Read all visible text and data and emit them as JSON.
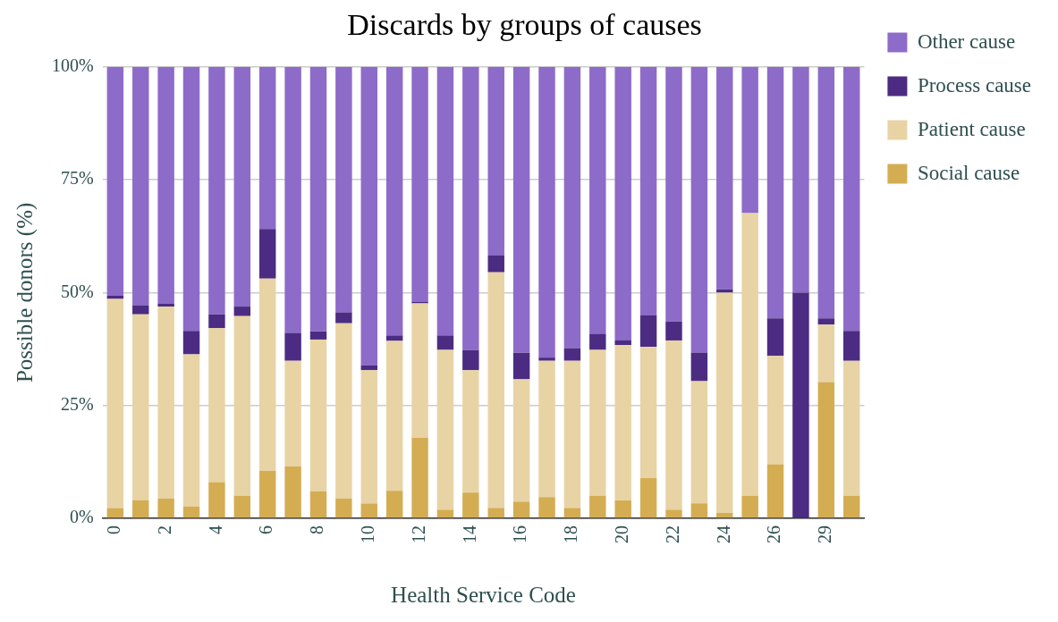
{
  "chart_data": {
    "type": "bar",
    "title": "Discards by groups of causes",
    "xlabel": "Health Service Code",
    "ylabel": "Possible donors (%)",
    "categories": [
      "0",
      null,
      "2",
      null,
      "4",
      null,
      "6",
      null,
      "8",
      null,
      "10",
      null,
      "12",
      null,
      "14",
      null,
      "16",
      null,
      "18",
      null,
      "20",
      null,
      "22",
      null,
      "24",
      null,
      "26",
      null,
      "29",
      null
    ],
    "stacked": true,
    "ylim": [
      0,
      100
    ],
    "yticks": [
      {
        "value": 0,
        "label": "0%"
      },
      {
        "value": 25,
        "label": "25%"
      },
      {
        "value": 50,
        "label": "50%"
      },
      {
        "value": 75,
        "label": "75%"
      },
      {
        "value": 100,
        "label": "100%"
      }
    ],
    "grid": "y",
    "legend": "top right",
    "series": [
      {
        "name": "Social cause",
        "color": "#d4ad53",
        "values": [
          2.3,
          4.0,
          4.4,
          2.6,
          8.0,
          5.0,
          10.5,
          11.5,
          6.0,
          4.4,
          3.3,
          6.1,
          17.8,
          1.9,
          5.7,
          2.3,
          3.7,
          4.7,
          2.3,
          5.0,
          4.0,
          8.9,
          1.9,
          3.3,
          1.2,
          5.0,
          12.0,
          0,
          30.2,
          5.0
        ]
      },
      {
        "name": "Patient cause",
        "color": "#e8d3a5",
        "values": [
          46.3,
          41.2,
          42.5,
          33.7,
          34.1,
          39.8,
          42.6,
          23.4,
          33.6,
          38.8,
          29.5,
          33.2,
          29.8,
          35.4,
          27.1,
          52.2,
          27.1,
          30.2,
          32.6,
          32.3,
          34.4,
          29.1,
          37.5,
          27.1,
          48.8,
          62.6,
          24.0,
          0,
          12.7,
          29.9
        ]
      },
      {
        "name": "Process cause",
        "color": "#4b2c82",
        "values": [
          0.7,
          2.0,
          0.7,
          5.2,
          3.1,
          2.1,
          11.0,
          6.2,
          1.8,
          2.4,
          1.1,
          1.2,
          0.4,
          3.2,
          4.5,
          3.8,
          5.9,
          0.7,
          2.8,
          3.5,
          1.0,
          7.0,
          4.2,
          6.3,
          0.7,
          0,
          8.3,
          50,
          1.4,
          6.6
        ]
      },
      {
        "name": "Other cause",
        "color": "#8d6bc9",
        "values": [
          50.7,
          52.8,
          52.4,
          58.5,
          54.8,
          53.1,
          35.9,
          58.9,
          58.6,
          54.4,
          66.1,
          59.5,
          52.0,
          59.5,
          62.7,
          41.7,
          63.3,
          64.4,
          62.3,
          59.2,
          60.6,
          55.0,
          56.4,
          63.3,
          49.3,
          32.4,
          55.7,
          50,
          55.7,
          58.5
        ]
      }
    ]
  }
}
